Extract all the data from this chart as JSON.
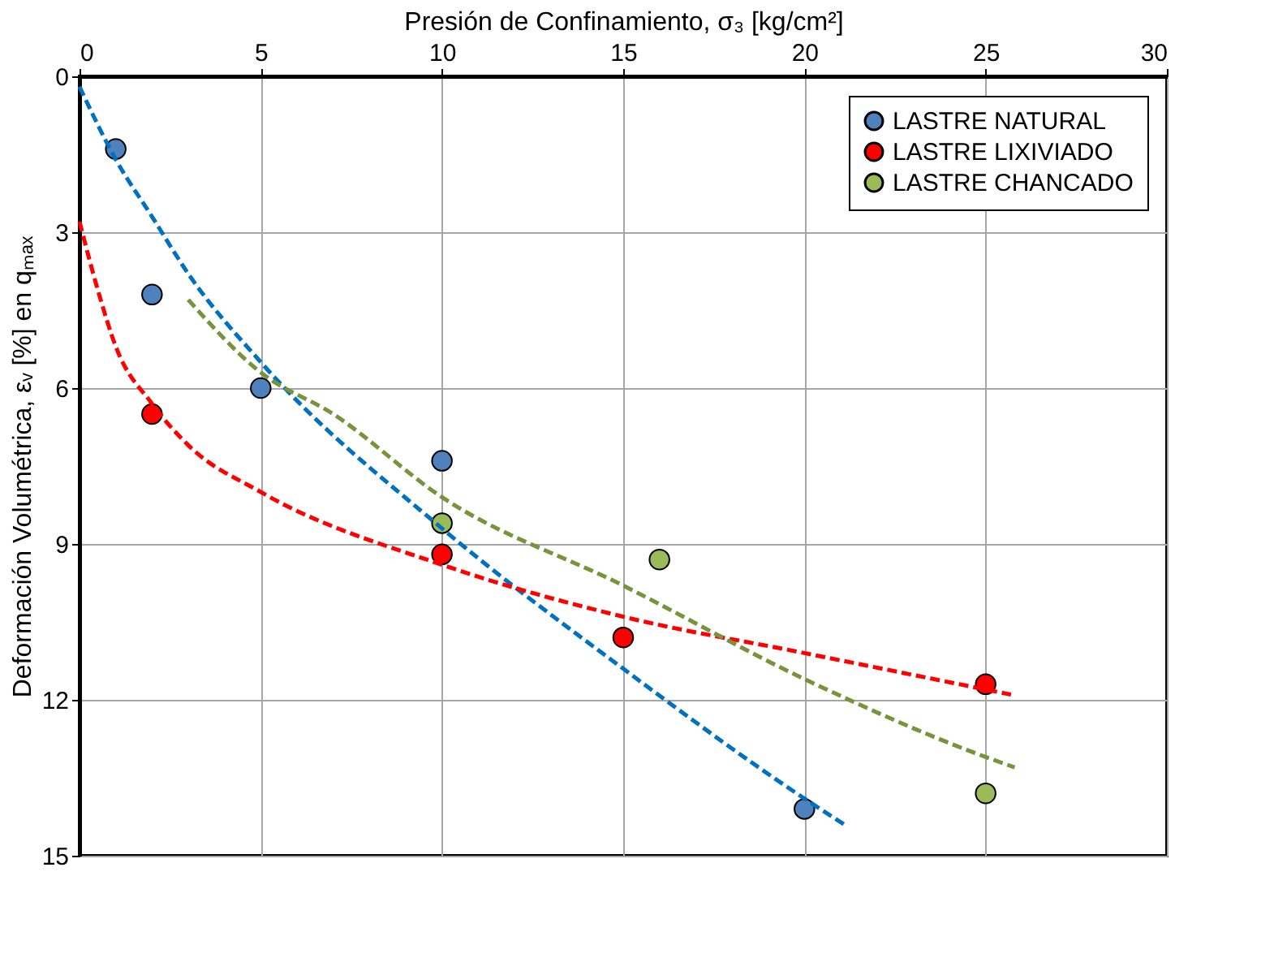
{
  "chart_data": {
    "type": "scatter",
    "xlabel": "Presión de Confinamiento, σ₃ [kg/cm²]",
    "ylabel": "Deformación Volumétrica, εᵥ [%]  en qₘₐₓ",
    "xlim": [
      0,
      30
    ],
    "xticks": [
      0,
      5,
      10,
      15,
      20,
      25,
      30
    ],
    "ylim": [
      15,
      0
    ],
    "yticks": [
      0,
      3,
      6,
      9,
      12,
      15
    ],
    "grid": true,
    "legend": "top right",
    "marker": "circle",
    "series": [
      {
        "name": "LASTRE NATURAL",
        "color": "#4f81bd",
        "x": [
          1,
          2,
          5,
          10,
          20
        ],
        "values": [
          1.4,
          4.2,
          6.0,
          7.4,
          14.1
        ]
      },
      {
        "name": "LASTRE LIXIVIADO",
        "color": "#ff0000",
        "x": [
          2,
          10,
          15,
          25
        ],
        "values": [
          6.5,
          9.2,
          10.8,
          11.7
        ]
      },
      {
        "name": "LASTRE CHANCADO",
        "color": "#9bbb59",
        "x": [
          10,
          16,
          25
        ],
        "values": [
          8.6,
          9.3,
          13.8
        ]
      },
      {
        "type": "line",
        "line_style": "dashed",
        "marker": "none",
        "color": "#0070c0",
        "x": [
          0,
          1,
          2,
          3,
          5,
          10,
          15,
          20,
          21.1
        ],
        "values": [
          0.2,
          1.6,
          2.7,
          3.8,
          5.5,
          8.7,
          11.4,
          13.9,
          14.4
        ]
      },
      {
        "type": "line",
        "line_style": "dashed",
        "marker": "none",
        "color": "#ff0000",
        "x": [
          0,
          0.5,
          1,
          2,
          3,
          5,
          10,
          15,
          20,
          25.7
        ],
        "values": [
          2.8,
          4.1,
          5.2,
          6.3,
          7.1,
          8.0,
          9.4,
          10.4,
          11.1,
          11.9
        ]
      },
      {
        "type": "line",
        "line_style": "dashed",
        "marker": "none",
        "color": "#77933c",
        "x": [
          3,
          5,
          7,
          10,
          15,
          20,
          25,
          25.8
        ],
        "values": [
          4.3,
          5.7,
          6.5,
          8.1,
          9.8,
          11.6,
          13.1,
          13.3
        ]
      }
    ]
  }
}
